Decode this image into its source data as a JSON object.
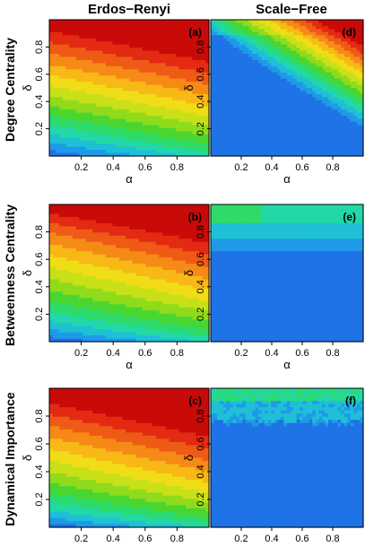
{
  "column_titles": [
    "Erdos−Renyi",
    "Scale−Free"
  ],
  "row_labels": [
    "Degree Centrality",
    "Betweenness Centrality",
    "Dynamical Importance"
  ],
  "axis": {
    "xlabel": "α",
    "ylabel": "δ",
    "xticks": [
      "0.2",
      "0.4",
      "0.6",
      "0.8"
    ],
    "yticks": [
      "0.2",
      "0.4",
      "0.6",
      "0.8"
    ]
  },
  "colors": {
    "scale": [
      "#1f4fd8",
      "#1e73e6",
      "#1f9ae8",
      "#1fc0d6",
      "#22d8a8",
      "#2edb6a",
      "#4ad630",
      "#8fdb1c",
      "#c8e018",
      "#f0dd17",
      "#f8b817",
      "#f58a17",
      "#ef5a17",
      "#e32a12",
      "#c80a08"
    ]
  },
  "chart_data": [
    {
      "type": "heatmap",
      "label": "(a)",
      "network": "Erdos−Renyi",
      "measure": "Degree Centrality",
      "xlabel": "α",
      "ylabel": "δ",
      "xlim": [
        0.0,
        1.0
      ],
      "ylim": [
        0.0,
        1.0
      ],
      "z_range": [
        0,
        1
      ]
    },
    {
      "type": "heatmap",
      "label": "(b)",
      "network": "Erdos−Renyi",
      "measure": "Betweenness Centrality",
      "xlabel": "α",
      "ylabel": "δ",
      "xlim": [
        0.0,
        1.0
      ],
      "ylim": [
        0.0,
        1.0
      ],
      "z_range": [
        0,
        1
      ]
    },
    {
      "type": "heatmap",
      "label": "(c)",
      "network": "Erdos−Renyi",
      "measure": "Dynamical Importance",
      "xlabel": "α",
      "ylabel": "δ",
      "xlim": [
        0.0,
        1.0
      ],
      "ylim": [
        0.0,
        1.0
      ],
      "z_range": [
        0,
        1
      ]
    },
    {
      "type": "heatmap",
      "label": "(d)",
      "network": "Scale−Free",
      "measure": "Degree Centrality",
      "xlabel": "α",
      "ylabel": "δ",
      "xlim": [
        0.0,
        1.0
      ],
      "ylim": [
        0.0,
        1.0
      ],
      "z_range": [
        0,
        1
      ]
    },
    {
      "type": "heatmap",
      "label": "(e)",
      "network": "Scale−Free",
      "measure": "Betweenness Centrality",
      "xlabel": "α",
      "ylabel": "δ",
      "xlim": [
        0.0,
        1.0
      ],
      "ylim": [
        0.0,
        1.0
      ],
      "z_range": [
        0,
        1
      ]
    },
    {
      "type": "heatmap",
      "label": "(f)",
      "network": "Scale−Free",
      "measure": "Dynamical Importance",
      "xlabel": "α",
      "ylabel": "δ",
      "xlim": [
        0.0,
        1.0
      ],
      "ylim": [
        0.0,
        1.0
      ],
      "z_range": [
        0,
        1
      ]
    }
  ]
}
